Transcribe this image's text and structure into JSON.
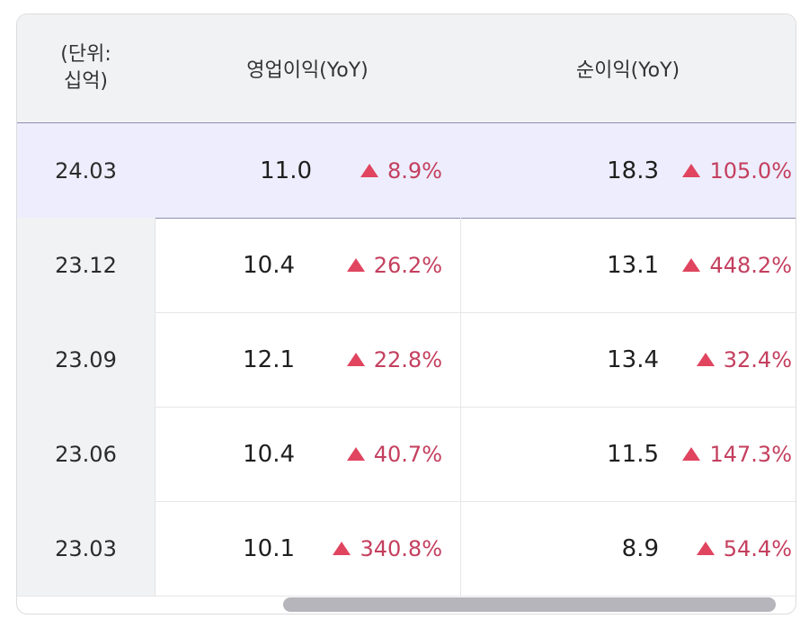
{
  "header": {
    "unit": "(단위:\n십억)",
    "operating_profit": "영업이익(YoY)",
    "net_profit": "순이익(YoY)"
  },
  "rows": [
    {
      "date": "24.03",
      "op": "11.0",
      "op_yoy": "8.9%",
      "net": "18.3",
      "net_yoy": "105.0%",
      "highlighted": true
    },
    {
      "date": "23.12",
      "op": "10.4",
      "op_yoy": "26.2%",
      "net": "13.1",
      "net_yoy": "448.2%",
      "highlighted": false
    },
    {
      "date": "23.09",
      "op": "12.1",
      "op_yoy": "22.8%",
      "net": "13.4",
      "net_yoy": "32.4%",
      "highlighted": false
    },
    {
      "date": "23.06",
      "op": "10.4",
      "op_yoy": "40.7%",
      "net": "11.5",
      "net_yoy": "147.3%",
      "highlighted": false
    },
    {
      "date": "23.03",
      "op": "10.1",
      "op_yoy": "340.8%",
      "net": "8.9",
      "net_yoy": "54.4%",
      "highlighted": false
    }
  ],
  "icons": {
    "increase": "up-triangle-icon"
  },
  "colors": {
    "increase": "#e0445f",
    "increase_text": "#c43f5e",
    "highlight_row": "#ededfd",
    "header_bg": "#f1f2f4"
  }
}
